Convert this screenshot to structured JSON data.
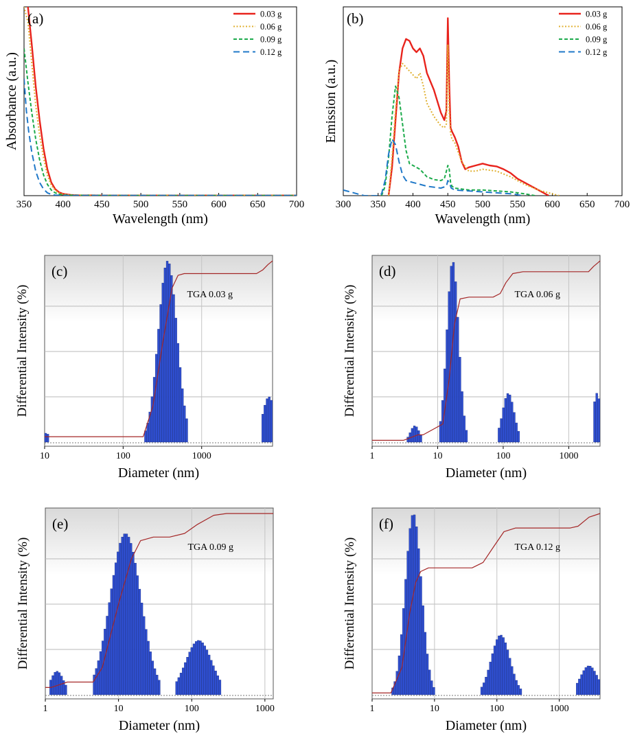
{
  "chart_data": [
    {
      "panel": "(a)",
      "type": "line",
      "xlabel": "Wavelength (nm)",
      "ylabel": "Absorbance (a.u.)",
      "xlim": [
        350,
        700
      ],
      "ylim": [
        0,
        1.0
      ],
      "xticks": [
        "350",
        "400",
        "450",
        "500",
        "550",
        "600",
        "650",
        "700"
      ],
      "legend": "top-right",
      "series": [
        {
          "name": "0.03 g",
          "color": "#e8231c",
          "dash": "solid",
          "x": [
            350,
            355,
            360,
            365,
            370,
            375,
            380,
            385,
            390,
            395,
            400,
            410,
            420,
            450,
            500,
            600,
            700
          ],
          "y": [
            1.05,
            1.0,
            0.8,
            0.58,
            0.4,
            0.25,
            0.14,
            0.07,
            0.035,
            0.018,
            0.01,
            0.004,
            0.002,
            0.001,
            0.001,
            0.001,
            0.001
          ]
        },
        {
          "name": "0.06 g",
          "color": "#e0b030",
          "dash": "dot",
          "x": [
            350,
            355,
            360,
            365,
            370,
            375,
            380,
            385,
            390,
            395,
            400,
            410,
            450,
            700
          ],
          "y": [
            1.0,
            0.92,
            0.7,
            0.48,
            0.32,
            0.2,
            0.11,
            0.055,
            0.028,
            0.014,
            0.008,
            0.003,
            0.001,
            0.001
          ]
        },
        {
          "name": "0.09 g",
          "color": "#1aaa4a",
          "dash": "dash",
          "x": [
            350,
            355,
            360,
            365,
            370,
            375,
            380,
            385,
            390,
            395,
            400,
            410,
            450,
            700
          ],
          "y": [
            0.78,
            0.6,
            0.44,
            0.3,
            0.19,
            0.11,
            0.06,
            0.03,
            0.015,
            0.008,
            0.004,
            0.002,
            0.001,
            0.001
          ]
        },
        {
          "name": "0.12 g",
          "color": "#1f78c8",
          "dash": "longdash",
          "x": [
            350,
            353,
            356,
            360,
            365,
            370,
            375,
            380,
            385,
            390,
            400,
            450,
            700
          ],
          "y": [
            0.62,
            0.45,
            0.34,
            0.23,
            0.13,
            0.07,
            0.035,
            0.015,
            0.007,
            0.003,
            0.001,
            0.001,
            0.001
          ]
        }
      ]
    },
    {
      "panel": "(b)",
      "type": "line",
      "xlabel": "Wavelength (nm)",
      "ylabel": "Emission (a.u.)",
      "xlim": [
        300,
        700
      ],
      "ylim": [
        0,
        1.0
      ],
      "xticks": [
        "300",
        "350",
        "400",
        "450",
        "500",
        "550",
        "600",
        "650",
        "700"
      ],
      "legend": "top-right",
      "series": [
        {
          "name": "0.03 g",
          "color": "#e8231c",
          "dash": "solid",
          "x": [
            365,
            370,
            375,
            380,
            385,
            390,
            395,
            400,
            405,
            410,
            415,
            420,
            430,
            440,
            445,
            448,
            450,
            452,
            454,
            456,
            460,
            465,
            470,
            475,
            480,
            490,
            500,
            510,
            520,
            530,
            540,
            550,
            560,
            570,
            580,
            590,
            595
          ],
          "y": [
            0.0,
            0.15,
            0.4,
            0.65,
            0.78,
            0.83,
            0.82,
            0.78,
            0.76,
            0.78,
            0.74,
            0.65,
            0.56,
            0.44,
            0.4,
            0.45,
            0.94,
            0.6,
            0.36,
            0.34,
            0.31,
            0.26,
            0.18,
            0.14,
            0.15,
            0.16,
            0.17,
            0.16,
            0.155,
            0.14,
            0.12,
            0.09,
            0.07,
            0.05,
            0.03,
            0.01,
            0.0
          ]
        },
        {
          "name": "0.06 g",
          "color": "#e0b030",
          "dash": "dot",
          "x": [
            365,
            370,
            375,
            380,
            385,
            390,
            395,
            400,
            405,
            410,
            415,
            420,
            430,
            440,
            445,
            448,
            450,
            452,
            454,
            456,
            460,
            470,
            480,
            490,
            500,
            520,
            540,
            560,
            580,
            600,
            610
          ],
          "y": [
            0.0,
            0.2,
            0.45,
            0.66,
            0.7,
            0.68,
            0.66,
            0.64,
            0.62,
            0.65,
            0.58,
            0.49,
            0.42,
            0.37,
            0.36,
            0.38,
            0.8,
            0.45,
            0.33,
            0.3,
            0.28,
            0.18,
            0.13,
            0.13,
            0.14,
            0.13,
            0.1,
            0.06,
            0.03,
            0.01,
            0.0
          ]
        },
        {
          "name": "0.09 g",
          "color": "#1aaa4a",
          "dash": "dash",
          "x": [
            355,
            360,
            365,
            370,
            375,
            380,
            385,
            390,
            395,
            400,
            405,
            410,
            420,
            430,
            440,
            445,
            448,
            450,
            452,
            454,
            456,
            460,
            470,
            480,
            500,
            520,
            540,
            560,
            575
          ],
          "y": [
            0.0,
            0.05,
            0.2,
            0.42,
            0.58,
            0.52,
            0.38,
            0.24,
            0.17,
            0.16,
            0.15,
            0.14,
            0.1,
            0.085,
            0.08,
            0.09,
            0.13,
            0.16,
            0.14,
            0.07,
            0.05,
            0.04,
            0.035,
            0.03,
            0.03,
            0.025,
            0.02,
            0.01,
            0.0
          ]
        },
        {
          "name": "0.12 g",
          "color": "#1f78c8",
          "dash": "longdash",
          "x": [
            300,
            310,
            320,
            330,
            340,
            350,
            355,
            360,
            365,
            370,
            375,
            380,
            385,
            390,
            400,
            410,
            420,
            440,
            448,
            450,
            452,
            455,
            460,
            480,
            500,
            520,
            540,
            550,
            555
          ],
          "y": [
            0.03,
            0.02,
            0.01,
            0.0,
            0.0,
            0.0,
            0.01,
            0.08,
            0.22,
            0.3,
            0.27,
            0.18,
            0.11,
            0.08,
            0.07,
            0.06,
            0.05,
            0.04,
            0.05,
            0.08,
            0.07,
            0.04,
            0.03,
            0.025,
            0.02,
            0.015,
            0.01,
            0.005,
            0.0
          ]
        }
      ]
    },
    {
      "panel": "(c)",
      "type": "bar",
      "xscale": "log",
      "xlabel": "Diameter (nm)",
      "ylabel": "Differential Intensity (%)",
      "xlim": [
        10,
        8000
      ],
      "ylim": [
        0,
        1.0
      ],
      "xticks": [
        "10",
        "100",
        "1000"
      ],
      "annotation": "TGA 0.03 g",
      "peaks": [
        {
          "center": 10.5,
          "sigma": 0.04,
          "height": 0.05,
          "min": 10,
          "max": 11.5
        },
        {
          "center": 370,
          "sigma": 0.12,
          "height": 1.0,
          "min": 190,
          "max": 660
        },
        {
          "center": 7200,
          "sigma": 0.08,
          "height": 0.25,
          "min": 5800,
          "max": 8000
        }
      ],
      "cumulative": {
        "x": [
          10,
          180,
          240,
          320,
          420,
          500,
          600,
          1000,
          5000,
          6000,
          7000,
          8000
        ],
        "y": [
          0.03,
          0.03,
          0.2,
          0.55,
          0.85,
          0.92,
          0.93,
          0.93,
          0.93,
          0.95,
          0.98,
          1.0
        ]
      }
    },
    {
      "panel": "(d)",
      "type": "bar",
      "xscale": "log",
      "xlabel": "Diameter (nm)",
      "ylabel": "Differential Intensity (%)",
      "xlim": [
        1,
        3000
      ],
      "ylim": [
        0,
        1.0
      ],
      "xticks": [
        "1",
        "10",
        "100",
        "1000"
      ],
      "annotation": "TGA 0.06 g",
      "peaks": [
        {
          "center": 4.5,
          "sigma": 0.07,
          "height": 0.09,
          "min": 3.5,
          "max": 6
        },
        {
          "center": 17,
          "sigma": 0.09,
          "height": 1.0,
          "min": 11,
          "max": 28
        },
        {
          "center": 120,
          "sigma": 0.09,
          "height": 0.27,
          "min": 85,
          "max": 180
        },
        {
          "center": 2700,
          "sigma": 0.06,
          "height": 0.27,
          "min": 2300,
          "max": 3000
        }
      ],
      "cumulative": {
        "x": [
          1,
          3,
          5,
          6,
          12,
          15,
          18,
          22,
          30,
          70,
          90,
          110,
          140,
          200,
          2000,
          2400,
          2800,
          3000
        ],
        "y": [
          0.01,
          0.01,
          0.04,
          0.04,
          0.1,
          0.35,
          0.65,
          0.79,
          0.8,
          0.8,
          0.82,
          0.88,
          0.93,
          0.94,
          0.94,
          0.97,
          0.99,
          1.0
        ]
      }
    },
    {
      "panel": "(e)",
      "type": "bar",
      "xscale": "log",
      "xlabel": "Diameter (nm)",
      "ylabel": "Differential Intensity (%)",
      "xlim": [
        1,
        1300
      ],
      "ylim": [
        0,
        1.0
      ],
      "xticks": [
        "1",
        "10",
        "100",
        "1000"
      ],
      "annotation": "TGA 0.09 g",
      "peaks": [
        {
          "center": 1.45,
          "sigma": 0.09,
          "height": 0.13,
          "min": 1.15,
          "max": 1.95
        },
        {
          "center": 12.5,
          "sigma": 0.21,
          "height": 0.89,
          "min": 4.6,
          "max": 37
        },
        {
          "center": 125,
          "sigma": 0.18,
          "height": 0.3,
          "min": 62,
          "max": 250
        }
      ],
      "cumulative": {
        "x": [
          1,
          1.2,
          2,
          4.5,
          6,
          10,
          15,
          20,
          30,
          50,
          80,
          120,
          200,
          300,
          600,
          1300
        ],
        "y": [
          0.04,
          0.04,
          0.07,
          0.07,
          0.15,
          0.5,
          0.75,
          0.85,
          0.87,
          0.87,
          0.89,
          0.94,
          0.99,
          1.0,
          1.0,
          1.0
        ]
      }
    },
    {
      "panel": "(f)",
      "type": "bar",
      "xscale": "log",
      "xlabel": "Diameter (nm)",
      "ylabel": "Differential Intensity (%)",
      "xlim": [
        1,
        4500
      ],
      "ylim": [
        0,
        1.0
      ],
      "xticks": [
        "1",
        "10",
        "100",
        "1000"
      ],
      "annotation": "TGA 0.12 g",
      "peaks": [
        {
          "center": 4.6,
          "sigma": 0.13,
          "height": 1.0,
          "min": 2.1,
          "max": 10.5
        },
        {
          "center": 115,
          "sigma": 0.15,
          "height": 0.33,
          "min": 55,
          "max": 250
        },
        {
          "center": 3000,
          "sigma": 0.14,
          "height": 0.16,
          "min": 1800,
          "max": 4500
        }
      ],
      "cumulative": {
        "x": [
          1,
          2,
          3,
          4,
          5,
          6,
          8,
          12,
          40,
          60,
          90,
          130,
          200,
          1500,
          2000,
          3000,
          4500
        ],
        "y": [
          0.01,
          0.01,
          0.15,
          0.45,
          0.62,
          0.68,
          0.7,
          0.7,
          0.7,
          0.73,
          0.82,
          0.9,
          0.92,
          0.92,
          0.93,
          0.98,
          1.0
        ]
      }
    }
  ]
}
